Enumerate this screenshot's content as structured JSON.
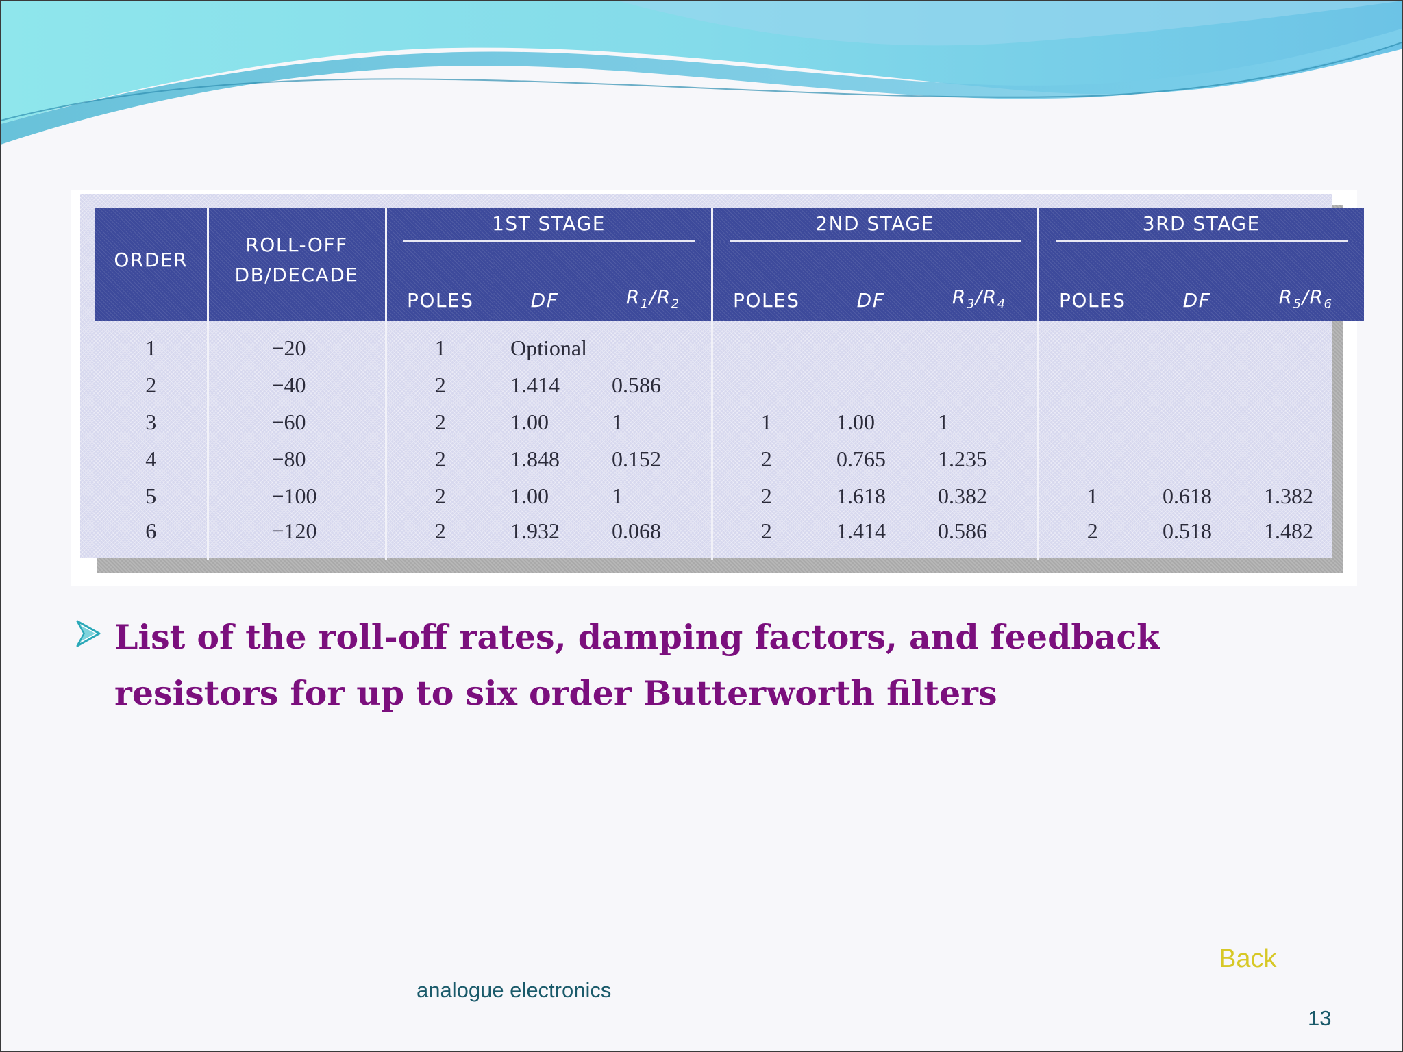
{
  "table": {
    "headers": {
      "order": "ORDER",
      "rolloff_line1": "ROLL-OFF",
      "rolloff_line2": "DB/DECADE",
      "stages": [
        "1ST STAGE",
        "2ND STAGE",
        "3RD STAGE"
      ],
      "poles": "POLES",
      "df": "DF",
      "ratios": [
        {
          "a": "R",
          "a_sub": "1",
          "b": "R",
          "b_sub": "2"
        },
        {
          "a": "R",
          "a_sub": "3",
          "b": "R",
          "b_sub": "4"
        },
        {
          "a": "R",
          "a_sub": "5",
          "b": "R",
          "b_sub": "6"
        }
      ]
    },
    "rows": [
      [
        "1",
        "−20",
        "1",
        "Optional",
        "",
        "",
        "",
        "",
        "",
        "",
        ""
      ],
      [
        "2",
        "−40",
        "2",
        "1.414",
        "0.586",
        "",
        "",
        "",
        "",
        "",
        ""
      ],
      [
        "3",
        "−60",
        "2",
        "1.00",
        "1",
        "1",
        "1.00",
        "1",
        "",
        "",
        ""
      ],
      [
        "4",
        "−80",
        "2",
        "1.848",
        "0.152",
        "2",
        "0.765",
        "1.235",
        "",
        "",
        ""
      ],
      [
        "5",
        "−100",
        "2",
        "1.00",
        "1",
        "2",
        "1.618",
        "0.382",
        "1",
        "0.618",
        "1.382"
      ],
      [
        "6",
        "−120",
        "2",
        "1.932",
        "0.068",
        "2",
        "1.414",
        "0.586",
        "2",
        "0.518",
        "1.482"
      ]
    ]
  },
  "caption": "List of the roll-off rates, damping factors, and feedback resistors for up to six order Butterworth filters",
  "back_label": "Back",
  "footer_text": "analogue electronics",
  "page_number": "13",
  "colors": {
    "caption": "#7b0f7d",
    "header_bg": "#3d4a9b",
    "back": "#d7c826",
    "footer": "#1a5a6a"
  }
}
